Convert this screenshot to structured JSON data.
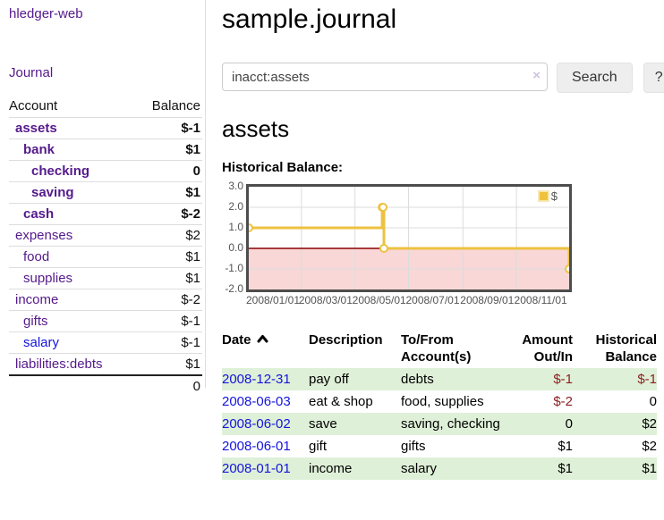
{
  "app": {
    "brand": "hledger-web",
    "nav_journal": "Journal"
  },
  "palette": {
    "visited_link_purple": "#551a8b",
    "link_blue": "#1414dd",
    "negative_strong_red": "#8b0000",
    "negative_soft_red": "#bf6767",
    "stripe_green": "#dff0d8",
    "chart_series_yellow": "#edc240",
    "chart_negative_shade_pink": "#f9d7d7",
    "chart_zero_line_red": "#8b0000"
  },
  "sidebar": {
    "columns": {
      "account": "Account",
      "balance": "Balance"
    },
    "accounts": [
      {
        "name": "assets",
        "indent": 1,
        "emphasis": true,
        "balance": "$-1"
      },
      {
        "name": "bank",
        "indent": 2,
        "emphasis": true,
        "balance": "$1"
      },
      {
        "name": "checking",
        "indent": 3,
        "emphasis": true,
        "balance": "0"
      },
      {
        "name": "saving",
        "indent": 3,
        "emphasis": true,
        "balance": "$1"
      },
      {
        "name": "cash",
        "indent": 2,
        "emphasis": true,
        "balance": "$-2"
      },
      {
        "name": "expenses",
        "indent": 1,
        "emphasis": false,
        "balance": "$2"
      },
      {
        "name": "food",
        "indent": 2,
        "emphasis": false,
        "balance": "$1"
      },
      {
        "name": "supplies",
        "indent": 2,
        "emphasis": false,
        "balance": "$1"
      },
      {
        "name": "income",
        "indent": 1,
        "emphasis": false,
        "balance": "$-2"
      },
      {
        "name": "gifts",
        "indent": 2,
        "emphasis": false,
        "balance": "$-1"
      },
      {
        "name": "salary",
        "indent": 2,
        "emphasis": false,
        "balance": "$-1",
        "unvisited": true
      },
      {
        "name": "liabilities:debts",
        "indent": 1,
        "emphasis": false,
        "balance": "$1"
      }
    ],
    "total": "0"
  },
  "header": {
    "title": "sample.journal"
  },
  "search": {
    "value": "inacct:assets",
    "clear_icon": "×",
    "button_label": "Search",
    "help_label": "?"
  },
  "main": {
    "account_heading": "assets",
    "chart_label": "Historical Balance:"
  },
  "chart_data": {
    "type": "line",
    "step": true,
    "title": "Historical Balance",
    "series": [
      {
        "name": "$",
        "color": "#edc240",
        "points": [
          [
            "2008-01-01",
            1
          ],
          [
            "2008-06-01",
            2
          ],
          [
            "2008-06-02",
            2
          ],
          [
            "2008-06-03",
            0
          ],
          [
            "2008-12-31",
            -1
          ]
        ]
      }
    ],
    "x_range": [
      "2008-01-01",
      "2008-12-31"
    ],
    "ylim": [
      -2,
      3
    ],
    "y_ticks": [
      "3.0",
      "2.0",
      "1.0",
      "0.0",
      "-1.0",
      "-2.0"
    ],
    "x_tick_labels": [
      "2008/01/01",
      "2008/03/01",
      "2008/05/01",
      "2008/07/01",
      "2008/09/01",
      "2008/11/01"
    ],
    "x_tick_dates": [
      "2008-01-01",
      "2008-03-01",
      "2008-05-01",
      "2008-07-01",
      "2008-09-01",
      "2008-11-01"
    ],
    "grid": true,
    "legend": {
      "label": "$",
      "position": "top-right"
    },
    "negative_shade_color": "#f9d7d7",
    "zero_line_color": "#8b0000"
  },
  "register": {
    "columns": [
      "Date",
      "Description",
      "To/From Account(s)",
      "Amount Out/In",
      "Historical Balance"
    ],
    "sort": {
      "column": "Date",
      "direction": "ascending"
    },
    "rows": [
      {
        "date": "2008-12-31",
        "description": "pay off",
        "accounts": "debts",
        "amount": "$-1",
        "balance": "$-1"
      },
      {
        "date": "2008-06-03",
        "description": "eat & shop",
        "accounts": "food, supplies",
        "amount": "$-2",
        "balance": "0"
      },
      {
        "date": "2008-06-02",
        "description": "save",
        "accounts": "saving, checking",
        "amount": "0",
        "balance": "$2"
      },
      {
        "date": "2008-06-01",
        "description": "gift",
        "accounts": "gifts",
        "amount": "$1",
        "balance": "$2"
      },
      {
        "date": "2008-01-01",
        "description": "income",
        "accounts": "salary",
        "amount": "$1",
        "balance": "$1"
      }
    ]
  }
}
